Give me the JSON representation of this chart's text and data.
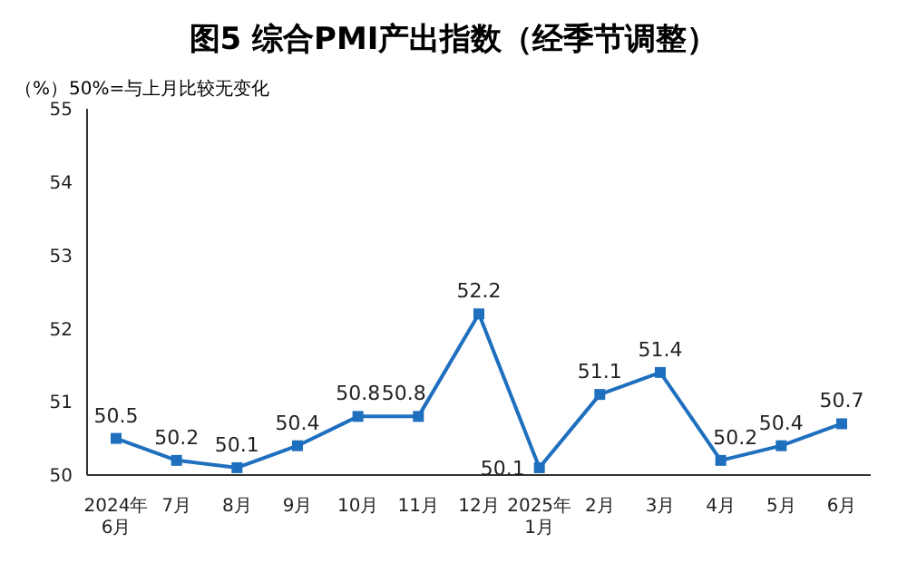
{
  "chart_data": {
    "type": "line",
    "title": "图5 综合PMI产出指数（经季节调整）",
    "ylabel": "（%）",
    "annotations": [
      "50%=与上月比较无变化"
    ],
    "categories": [
      "2024年\n6月",
      "7月",
      "8月",
      "9月",
      "10月",
      "11月",
      "12月",
      "2025年\n1月",
      "2月",
      "3月",
      "4月",
      "5月",
      "6月"
    ],
    "series": [
      {
        "color": "#1f6fbf",
        "values": [
          50.5,
          50.2,
          50.1,
          50.4,
          50.8,
          50.8,
          52.2,
          50.1,
          51.1,
          51.4,
          50.2,
          50.4,
          50.7
        ]
      }
    ],
    "ylim": [
      50,
      55
    ],
    "yticks": [
      50,
      51,
      52,
      53,
      54,
      55
    ],
    "grid": false,
    "legend": false,
    "marker": "square",
    "line_style": "solid",
    "data_labels": true
  }
}
